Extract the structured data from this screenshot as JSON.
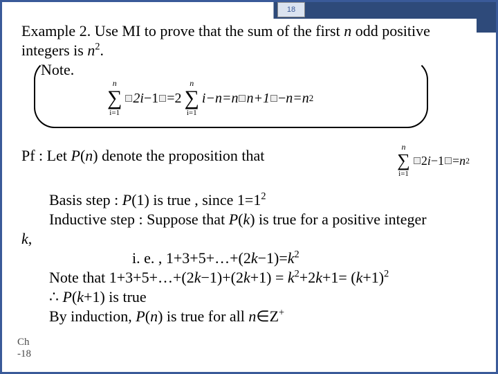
{
  "page_number": "18",
  "title_line1": "Example 2. Use MI to prove that the sum of the first ",
  "title_n": "n",
  "title_line1_end": " odd positive",
  "title_line2_pre": "integers is ",
  "title_n2": "n",
  "title_line2_post": ".",
  "note_label": "Note.",
  "eq1": {
    "sum1_upper": "n",
    "sum1_lower": "i=1",
    "body1_a": "2i",
    "body1_b": "1",
    "eq": "=",
    "two": "2",
    "sum2_upper": "n",
    "sum2_lower": "i=1",
    "body2": "i",
    "minus_n": "−n=n",
    "n_plus1": "n+1",
    "final": "n=n",
    "sq": "2"
  },
  "pf_pre": "Pf : Let ",
  "pf_P": "P",
  "pf_paren": "(",
  "pf_n": "n",
  "pf_post": ") denote the proposition  that",
  "eq2": {
    "sum_upper": "n",
    "sum_lower": "i=1",
    "body_a": "2",
    "body_b": "1",
    "eq": "=",
    "n": "n",
    "sq": "2"
  },
  "basis_pre": "Basis step : ",
  "basis_P": "P",
  "basis_post": "(1) is true , since 1=1",
  "basis_sq": "2",
  "inductive_pre": "Inductive step :  Suppose that ",
  "inductive_P": "P",
  "inductive_paren": "(",
  "inductive_k": "k",
  "inductive_post": ") is true for a positive  integer",
  "k_label": "k",
  "k_comma": ",",
  "ie_pre": "i. e. ,  1+3+5+…+(2",
  "ie_k1": "k",
  "ie_mid": "−1)=",
  "ie_k2": "k",
  "ie_sq": "2",
  "note2_pre": "Note that 1+3+5+…+(2",
  "note2_k1": "k",
  "note2_a": "−1)+(2",
  "note2_k2": "k",
  "note2_b": "+1) = ",
  "note2_k3": "k",
  "note2_c": "+2",
  "note2_k4": "k",
  "note2_d": "+1= (",
  "note2_k5": "k",
  "note2_e": "+1)",
  "note2_sq1": "2",
  "note2_sq2": "2",
  "therefore_sym": "∴",
  "therefore_P": "P",
  "therefore_paren": "(",
  "therefore_k": "k",
  "therefore_post": "+1) is true",
  "byind_pre": "By induction, ",
  "byind_P": "P",
  "byind_paren": "(",
  "byind_n": "n",
  "byind_mid": ") is true for all ",
  "byind_n2": "n",
  "byind_in": "∈",
  "byind_Z": "Z",
  "byind_plus": "+",
  "footer1": "Ch",
  "footer2": "-18",
  "colors": {
    "border": "#3a5a99",
    "header_dark": "#2e4a7a",
    "pagenum_bg": "#dbe3f0"
  }
}
